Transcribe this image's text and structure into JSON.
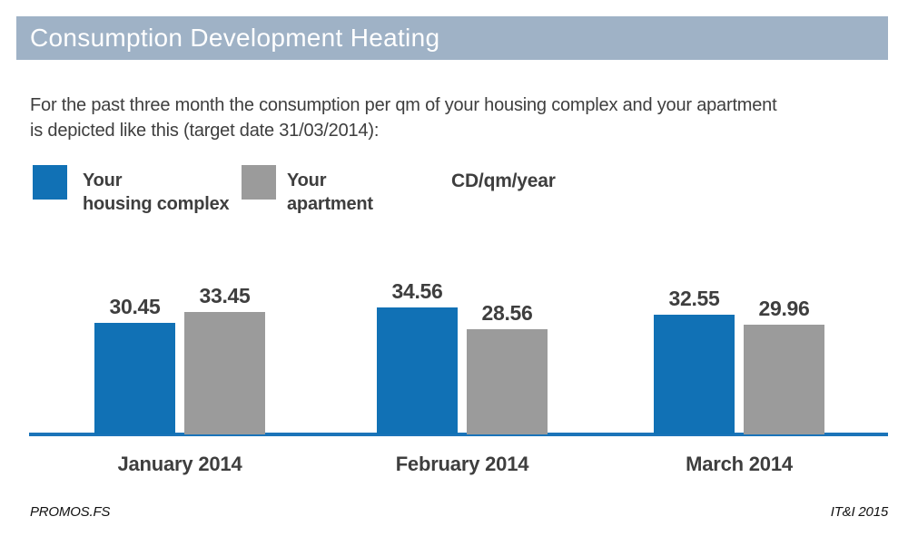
{
  "header": {
    "title": "Consumption Development Heating"
  },
  "intro": {
    "lines": [
      "For the past three month the consumption per qm of your housing complex and your apartment",
      "is depicted like this (target date 31/03/2014):"
    ]
  },
  "legend": {
    "items": [
      {
        "line1": "Your",
        "line2": "housing complex",
        "color": "#1171b5"
      },
      {
        "line1": "Your",
        "line2": "apartment",
        "color": "#9b9b9b"
      }
    ],
    "unit": "CD/qm/year"
  },
  "chart_data": {
    "type": "bar",
    "title": "Consumption Development Heating",
    "categories": [
      "January 2014",
      "February 2014",
      "March 2014"
    ],
    "series": [
      {
        "name": "Your housing complex",
        "color": "#1171b5",
        "values": [
          30.45,
          34.56,
          32.55
        ]
      },
      {
        "name": "Your apartment",
        "color": "#9b9b9b",
        "values": [
          33.45,
          28.56,
          29.96
        ]
      }
    ],
    "ylabel": "CD/qm/year",
    "ylim": [
      0,
      40
    ],
    "grid": false,
    "legend_position": "top",
    "value_labels": true,
    "axis_color": "#1b74b9"
  },
  "footer": {
    "left": "PROMOS.FS",
    "right": "IT&I 2015"
  }
}
